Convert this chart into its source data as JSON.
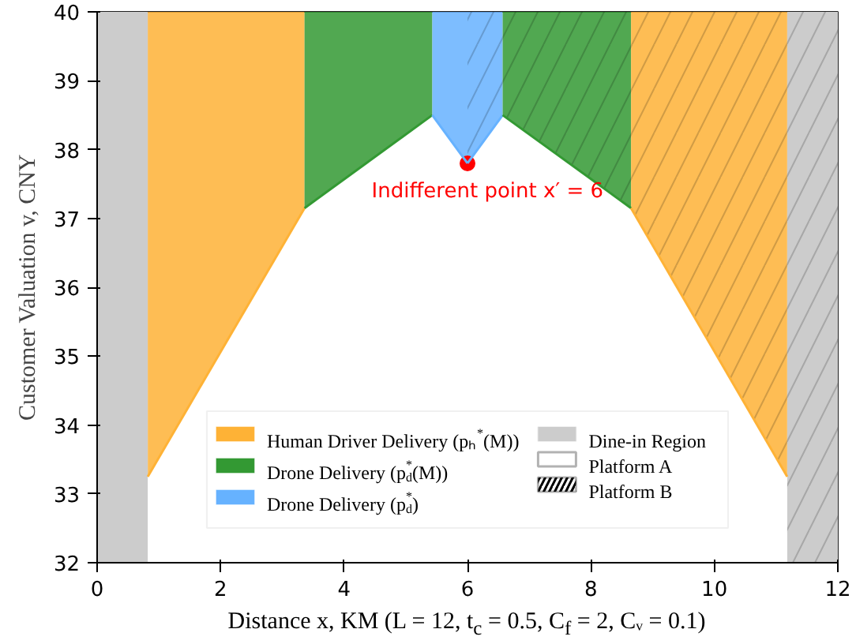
{
  "chart_data": {
    "type": "line",
    "xlabel": "Distance x, KM (L = 12, t$_{c}$ = 0.5, C$_{f}$ = 2, Cᵥ = 0.1)",
    "ylabel": "Customer Valuation v, CNY",
    "xlim": [
      0,
      12
    ],
    "ylim": [
      32,
      40
    ],
    "xticks": [
      0,
      2,
      4,
      6,
      8,
      10,
      12
    ],
    "yticks": [
      32,
      33,
      34,
      35,
      36,
      37,
      38,
      39,
      40
    ],
    "grid": false,
    "legend": "bottom",
    "annotations": [
      {
        "text": "Indifferent point x′ = 6",
        "x": 6,
        "y": 37.8
      }
    ],
    "series": [
      {
        "name": "Human Driver Delivery (pₕ$^{*}$(M))",
        "color": "#feb236",
        "x": [
          0.82,
          3.36
        ],
        "values": [
          33.25,
          37.15
        ],
        "lower": [
          33.25,
          37.15
        ],
        "upper": [
          40,
          40
        ]
      },
      {
        "name": "Drone Delivery (p$_{d}$$^{*}$(M))",
        "color": "#339933",
        "x": [
          3.36,
          5.43
        ],
        "values": [
          37.15,
          38.5
        ],
        "lower": [
          37.15,
          38.5
        ],
        "upper": [
          40,
          40
        ]
      },
      {
        "name": "Drone Delivery (p$_{d}$$^{*}$)",
        "color": "#66b2ff",
        "x": [
          5.43,
          6
        ],
        "values": [
          38.5,
          37.8
        ],
        "lower": [
          38.5,
          37.8
        ],
        "upper": [
          40,
          40
        ]
      },
      {
        "color": "#66b2ff",
        "x": [
          6,
          6.57
        ],
        "values": [
          37.8,
          38.5
        ],
        "lower": [
          37.8,
          38.5
        ],
        "upper": [
          40,
          40
        ]
      },
      {
        "color": "#339933",
        "x": [
          6.57,
          8.65
        ],
        "values": [
          38.5,
          37.15
        ],
        "lower": [
          38.5,
          37.15
        ],
        "upper": [
          40,
          40
        ]
      },
      {
        "color": "#feb236",
        "x": [
          8.65,
          11.18
        ],
        "values": [
          37.15,
          33.25
        ],
        "lower": [
          37.15,
          33.25
        ],
        "upper": [
          40,
          40
        ]
      },
      {
        "type": "area",
        "name": "Dine-in Region",
        "color": "#cccccc",
        "x": [
          0,
          0.82
        ],
        "values": [
          40,
          40
        ]
      },
      {
        "type": "area",
        "color": "#cccccc",
        "x": [
          11.18,
          12
        ],
        "values": [
          40,
          40
        ]
      },
      {
        "type": "scatter",
        "color": "#ff0000",
        "x": [
          6
        ],
        "values": [
          37.8
        ],
        "marker": "circle"
      },
      {
        "name": "Platform A",
        "color": null
      },
      {
        "name": "Platform B",
        "color": null
      }
    ]
  }
}
